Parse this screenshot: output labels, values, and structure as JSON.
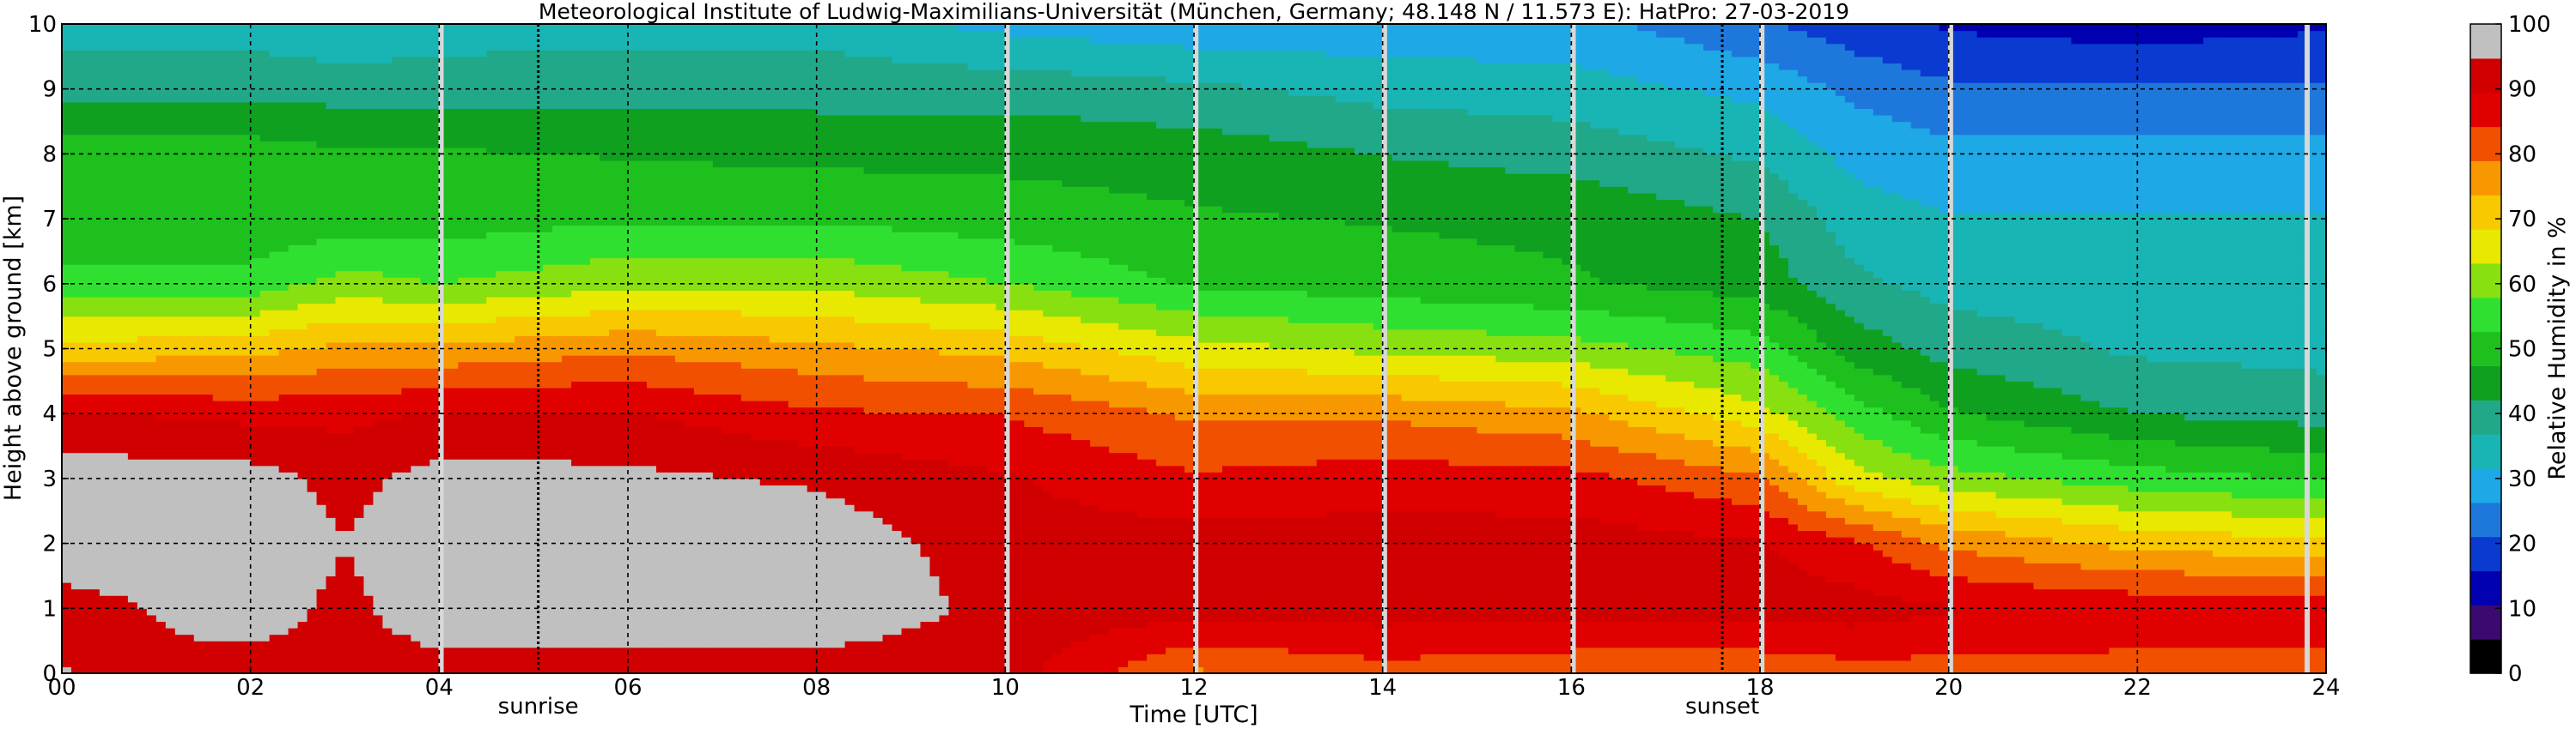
{
  "chart_data": {
    "type": "heatmap",
    "title": "Meteorological Institute of Ludwig-Maximilians-Universität (München, Germany; 48.148 N / 11.573 E):    HatPro: 27-03-2019",
    "xlabel": "Time [UTC]",
    "ylabel": "Height above ground [km]",
    "xlim": [
      0,
      24
    ],
    "ylim": [
      0,
      10
    ],
    "x_ticks": [
      "00",
      "02",
      "04",
      "06",
      "08",
      "10",
      "12",
      "14",
      "16",
      "18",
      "20",
      "22",
      "24"
    ],
    "y_ticks": [
      "0",
      "1",
      "2",
      "3",
      "4",
      "5",
      "6",
      "7",
      "8",
      "9",
      "10"
    ],
    "grid": true,
    "annotations": [
      {
        "text": "sunrise",
        "x": 5.05
      },
      {
        "text": "sunset",
        "x": 17.6
      }
    ],
    "data_gaps_hours": [
      4.02,
      10.02,
      12.02,
      14.02,
      16.02,
      18.02,
      20.02,
      23.8
    ],
    "colorbar": {
      "label": "Relative Humidity in %",
      "ticks": [
        "0",
        "10",
        "20",
        "30",
        "40",
        "50",
        "60",
        "70",
        "80",
        "90",
        "100"
      ],
      "range": [
        0,
        100
      ],
      "colors": [
        "#000000",
        "#3a0a6e",
        "#0000b0",
        "#0a3ad0",
        "#1e78dc",
        "#1ea8e6",
        "#19b4b4",
        "#21a888",
        "#10a020",
        "#1ec01e",
        "#30e030",
        "#88e010",
        "#e8e800",
        "#f8c800",
        "#f89800",
        "#f05000",
        "#e00000",
        "#d00000",
        "#c0c0c0"
      ]
    },
    "humidity_profiles": [
      {
        "time": 0,
        "rh_by_km": [
          95,
          92,
          99,
          98,
          90,
          70,
          55,
          48,
          50,
          40,
          35
        ]
      },
      {
        "time": 2,
        "rh_by_km": [
          92,
          98,
          99,
          97,
          88,
          72,
          55,
          48,
          50,
          40,
          35
        ]
      },
      {
        "time": 3,
        "rh_by_km": [
          92,
          93,
          95,
          93,
          88,
          75,
          60,
          50,
          48,
          40,
          32
        ]
      },
      {
        "time": 4,
        "rh_by_km": [
          92,
          99,
          99,
          97,
          90,
          75,
          58,
          50,
          48,
          40,
          34
        ]
      },
      {
        "time": 6,
        "rh_by_km": [
          92,
          99,
          99,
          96,
          90,
          78,
          62,
          52,
          47,
          40,
          35
        ]
      },
      {
        "time": 8,
        "rh_by_km": [
          92,
          99,
          98,
          94,
          85,
          75,
          62,
          52,
          46,
          40,
          35
        ]
      },
      {
        "time": 10,
        "rh_by_km": [
          92,
          93,
          92,
          90,
          84,
          72,
          58,
          50,
          46,
          40,
          30
        ]
      },
      {
        "time": 12,
        "rh_by_km": [
          78,
          92,
          92,
          85,
          78,
          65,
          52,
          48,
          45,
          38,
          28
        ]
      },
      {
        "time": 14,
        "rh_by_km": [
          82,
          92,
          92,
          87,
          78,
          62,
          50,
          47,
          42,
          35,
          28
        ]
      },
      {
        "time": 16,
        "rh_by_km": [
          80,
          92,
          92,
          86,
          75,
          60,
          48,
          46,
          40,
          34,
          28
        ]
      },
      {
        "time": 18,
        "rh_by_km": [
          80,
          92,
          90,
          80,
          65,
          55,
          45,
          42,
          36,
          30,
          22
        ]
      },
      {
        "time": 19,
        "rh_by_km": [
          82,
          92,
          85,
          65,
          55,
          45,
          38,
          34,
          30,
          25,
          18
        ]
      },
      {
        "time": 20,
        "rh_by_km": [
          82,
          90,
          78,
          60,
          48,
          40,
          35,
          32,
          28,
          22,
          15
        ]
      },
      {
        "time": 22,
        "rh_by_km": [
          82,
          88,
          72,
          55,
          42,
          36,
          34,
          32,
          28,
          22,
          13
        ]
      },
      {
        "time": 24,
        "rh_by_km": [
          82,
          88,
          70,
          52,
          40,
          35,
          33,
          32,
          28,
          22,
          15
        ]
      }
    ]
  }
}
